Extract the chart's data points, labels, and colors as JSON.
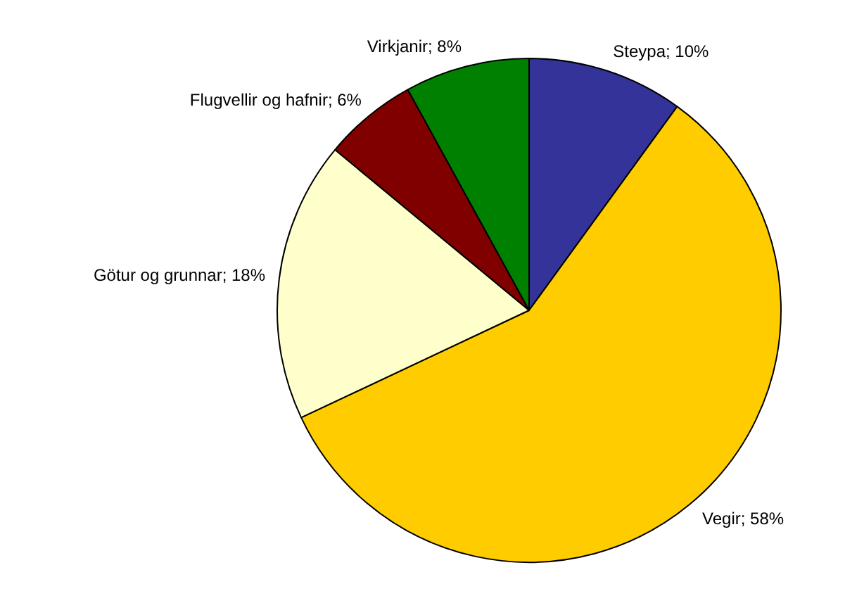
{
  "chart_data": {
    "type": "pie",
    "categories": [
      "Steypa",
      "Vegir",
      "Götur og grunnar",
      "Flugvellir og hafnir",
      "Virkjanir"
    ],
    "values": [
      10,
      58,
      18,
      6,
      8
    ],
    "value_labels": [
      "10%",
      "58%",
      "18%",
      "6%",
      "8%"
    ],
    "colors": [
      "#333399",
      "#ffcc00",
      "#ffffcc",
      "#800000",
      "#008000"
    ],
    "legend": false
  }
}
